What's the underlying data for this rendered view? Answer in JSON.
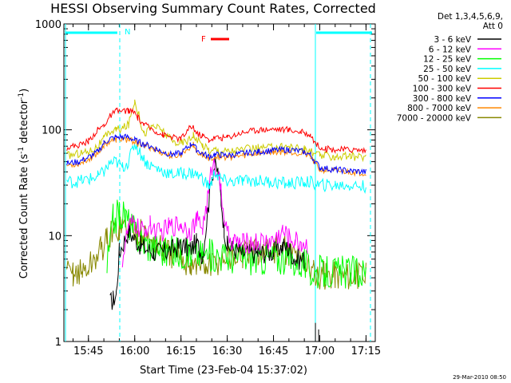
{
  "chart_data": {
    "type": "line",
    "title": "HESSI Observing Summary Count Rates, Corrected",
    "xlabel": "Start Time (23-Feb-04 15:37:02)",
    "ylabel_parts": {
      "a": "Corrected Count Rate (s",
      "sup1": "-1",
      "b": " detector",
      "sup2": "-1",
      "c": ")"
    },
    "y_scale": "log",
    "ylim": [
      1,
      1000
    ],
    "y_ticks": [
      {
        "value": 1,
        "label": "1"
      },
      {
        "value": 10,
        "label": "10"
      },
      {
        "value": 100,
        "label": "100"
      },
      {
        "value": 1000,
        "label": "1000"
      }
    ],
    "xlim_minutes": [
      15.37,
      17.2
    ],
    "x_range_minutes": [
      937.03,
      1038
    ],
    "x_ticks": [
      {
        "minute": 945,
        "label": "15:45"
      },
      {
        "minute": 960,
        "label": "16:00"
      },
      {
        "minute": 975,
        "label": "16:15"
      },
      {
        "minute": 990,
        "label": "16:30"
      },
      {
        "minute": 1005,
        "label": "16:45"
      },
      {
        "minute": 1020,
        "label": "17:00"
      },
      {
        "minute": 1035,
        "label": "17:15"
      }
    ],
    "legend_header": [
      "Det 1,3,4,5,6,9,",
      "Att 0"
    ],
    "legend_placement": "right",
    "series": [
      {
        "name": "3 - 6 keV",
        "color": "#000000",
        "points": [
          [
            943,
            0
          ],
          [
            951,
            0
          ],
          [
            952,
            2.3
          ],
          [
            953,
            2.5
          ],
          [
            954,
            2.8
          ],
          [
            955,
            7
          ],
          [
            958,
            11
          ],
          [
            962,
            8
          ],
          [
            966,
            7
          ],
          [
            970,
            7
          ],
          [
            975,
            8
          ],
          [
            978,
            7.5
          ],
          [
            980,
            8.5
          ],
          [
            982,
            6.5
          ],
          [
            984,
            20
          ],
          [
            985,
            38
          ],
          [
            986,
            46
          ],
          [
            987,
            40
          ],
          [
            988,
            22
          ],
          [
            989,
            12
          ],
          [
            990,
            8
          ],
          [
            995,
            6.8
          ],
          [
            1000,
            6.8
          ],
          [
            1005,
            7
          ],
          [
            1008,
            8
          ],
          [
            1010,
            7.5
          ],
          [
            1012,
            6
          ],
          [
            1015,
            6
          ],
          [
            1017,
            0
          ],
          [
            1018.6,
            1.0
          ],
          [
            1020,
            0
          ]
        ]
      },
      {
        "name": "6 - 12 keV",
        "color": "#ff00ff",
        "points": [
          [
            956,
            6
          ],
          [
            958,
            12
          ],
          [
            960,
            13
          ],
          [
            962,
            11
          ],
          [
            965,
            12.5
          ],
          [
            968,
            10.5
          ],
          [
            971,
            12
          ],
          [
            975,
            13
          ],
          [
            978,
            11
          ],
          [
            980,
            14
          ],
          [
            982,
            12
          ],
          [
            984,
            25
          ],
          [
            985,
            45
          ],
          [
            986,
            48
          ],
          [
            987,
            40
          ],
          [
            988,
            25
          ],
          [
            989,
            15
          ],
          [
            990,
            10
          ],
          [
            992,
            8.8
          ],
          [
            995,
            8.5
          ],
          [
            1000,
            8.7
          ],
          [
            1005,
            9
          ],
          [
            1008,
            11
          ],
          [
            1010,
            9.5
          ],
          [
            1012,
            9
          ],
          [
            1014,
            8.5
          ],
          [
            1016,
            8
          ],
          [
            1017,
            0
          ]
        ]
      },
      {
        "name": "12 - 25 keV",
        "color": "#00ff00",
        "points": [
          [
            951,
            5
          ],
          [
            953,
            14
          ],
          [
            955,
            16
          ],
          [
            957,
            15
          ],
          [
            959,
            12
          ],
          [
            962,
            9
          ],
          [
            965,
            8
          ],
          [
            968,
            7.5
          ],
          [
            970,
            7
          ],
          [
            975,
            7
          ],
          [
            978,
            6.8
          ],
          [
            980,
            7
          ],
          [
            982,
            6.5
          ],
          [
            985,
            6.5
          ],
          [
            988,
            6.5
          ],
          [
            990,
            6.3
          ],
          [
            995,
            6.2
          ],
          [
            1000,
            6
          ],
          [
            1005,
            6.2
          ],
          [
            1010,
            6
          ],
          [
            1015,
            5.5
          ],
          [
            1017,
            4.5
          ],
          [
            1020,
            4.5
          ],
          [
            1025,
            4.5
          ],
          [
            1030,
            4.5
          ],
          [
            1035,
            4.5
          ]
        ]
      },
      {
        "name": "25 - 50 keV",
        "color": "#00ffff",
        "points": [
          [
            938,
            33
          ],
          [
            940,
            32
          ],
          [
            945,
            34
          ],
          [
            948,
            36
          ],
          [
            950,
            40
          ],
          [
            952,
            48
          ],
          [
            954,
            50
          ],
          [
            956,
            44
          ],
          [
            958,
            50
          ],
          [
            960,
            75
          ],
          [
            962,
            58
          ],
          [
            964,
            48
          ],
          [
            968,
            42
          ],
          [
            972,
            38
          ],
          [
            976,
            39
          ],
          [
            979,
            39
          ],
          [
            982,
            35
          ],
          [
            984,
            29
          ],
          [
            985,
            32
          ],
          [
            986,
            40
          ],
          [
            987,
            36
          ],
          [
            988,
            34
          ],
          [
            990,
            32
          ],
          [
            995,
            33
          ],
          [
            1000,
            33
          ],
          [
            1005,
            32
          ],
          [
            1010,
            31
          ],
          [
            1015,
            32
          ],
          [
            1017,
            32
          ],
          [
            1020,
            30
          ],
          [
            1025,
            30
          ],
          [
            1030,
            30
          ],
          [
            1035,
            29
          ]
        ]
      },
      {
        "name": "50 - 100 keV",
        "color": "#cccc00",
        "points": [
          [
            938,
            57
          ],
          [
            942,
            60
          ],
          [
            945,
            62
          ],
          [
            948,
            70
          ],
          [
            950,
            82
          ],
          [
            952,
            95
          ],
          [
            954,
            100
          ],
          [
            956,
            103
          ],
          [
            958,
            112
          ],
          [
            960,
            190
          ],
          [
            961,
            150
          ],
          [
            963,
            92
          ],
          [
            966,
            110
          ],
          [
            969,
            98
          ],
          [
            972,
            78
          ],
          [
            975,
            75
          ],
          [
            978,
            82
          ],
          [
            979,
            92
          ],
          [
            980,
            80
          ],
          [
            982,
            72
          ],
          [
            984,
            65
          ],
          [
            985,
            62
          ],
          [
            986,
            66
          ],
          [
            988,
            63
          ],
          [
            990,
            63
          ],
          [
            995,
            65
          ],
          [
            1000,
            67
          ],
          [
            1005,
            68
          ],
          [
            1010,
            70
          ],
          [
            1015,
            65
          ],
          [
            1017,
            62
          ],
          [
            1020,
            57
          ],
          [
            1025,
            56
          ],
          [
            1030,
            56
          ],
          [
            1035,
            55
          ]
        ]
      },
      {
        "name": "100 - 300 keV",
        "color": "#ff0000",
        "points": [
          [
            938,
            68
          ],
          [
            942,
            72
          ],
          [
            945,
            78
          ],
          [
            948,
            100
          ],
          [
            950,
            110
          ],
          [
            952,
            135
          ],
          [
            954,
            150
          ],
          [
            956,
            150
          ],
          [
            958,
            152
          ],
          [
            960,
            145
          ],
          [
            961,
            130
          ],
          [
            963,
            112
          ],
          [
            966,
            100
          ],
          [
            969,
            90
          ],
          [
            972,
            85
          ],
          [
            975,
            82
          ],
          [
            978,
            105
          ],
          [
            979,
            108
          ],
          [
            980,
            92
          ],
          [
            982,
            88
          ],
          [
            984,
            80
          ],
          [
            986,
            84
          ],
          [
            988,
            84
          ],
          [
            990,
            85
          ],
          [
            995,
            95
          ],
          [
            1000,
            100
          ],
          [
            1005,
            102
          ],
          [
            1010,
            100
          ],
          [
            1014,
            95
          ],
          [
            1017,
            90
          ],
          [
            1019,
            72
          ],
          [
            1022,
            66
          ],
          [
            1025,
            65
          ],
          [
            1030,
            65
          ],
          [
            1035,
            64
          ]
        ]
      },
      {
        "name": "300 - 800 keV",
        "color": "#0000ff",
        "points": [
          [
            938,
            48
          ],
          [
            942,
            50
          ],
          [
            945,
            55
          ],
          [
            948,
            62
          ],
          [
            950,
            75
          ],
          [
            952,
            82
          ],
          [
            954,
            85
          ],
          [
            956,
            86
          ],
          [
            958,
            85
          ],
          [
            960,
            80
          ],
          [
            962,
            75
          ],
          [
            965,
            70
          ],
          [
            968,
            64
          ],
          [
            972,
            58
          ],
          [
            975,
            60
          ],
          [
            978,
            72
          ],
          [
            979,
            75
          ],
          [
            980,
            65
          ],
          [
            982,
            60
          ],
          [
            984,
            56
          ],
          [
            986,
            58
          ],
          [
            988,
            58
          ],
          [
            990,
            57
          ],
          [
            995,
            60
          ],
          [
            1000,
            62
          ],
          [
            1005,
            64
          ],
          [
            1010,
            65
          ],
          [
            1015,
            62
          ],
          [
            1017,
            58
          ],
          [
            1020,
            44
          ],
          [
            1025,
            42
          ],
          [
            1030,
            41
          ],
          [
            1035,
            40
          ]
        ]
      },
      {
        "name": "800 - 7000 keV",
        "color": "#ff8800",
        "points": [
          [
            938,
            46
          ],
          [
            942,
            48
          ],
          [
            945,
            53
          ],
          [
            948,
            60
          ],
          [
            950,
            72
          ],
          [
            952,
            78
          ],
          [
            954,
            80
          ],
          [
            956,
            82
          ],
          [
            958,
            80
          ],
          [
            960,
            77
          ],
          [
            962,
            72
          ],
          [
            965,
            68
          ],
          [
            968,
            62
          ],
          [
            972,
            56
          ],
          [
            975,
            58
          ],
          [
            978,
            70
          ],
          [
            979,
            72
          ],
          [
            980,
            62
          ],
          [
            982,
            57
          ],
          [
            984,
            54
          ],
          [
            986,
            56
          ],
          [
            988,
            55
          ],
          [
            990,
            55
          ],
          [
            995,
            57
          ],
          [
            1000,
            60
          ],
          [
            1005,
            62
          ],
          [
            1010,
            62
          ],
          [
            1015,
            60
          ],
          [
            1017,
            55
          ],
          [
            1020,
            42
          ],
          [
            1025,
            41
          ],
          [
            1030,
            40
          ],
          [
            1035,
            39
          ]
        ]
      },
      {
        "name": "7000 - 20000 keV",
        "color": "#888800",
        "points": [
          [
            938,
            4.3
          ],
          [
            940,
            4.5
          ],
          [
            943,
            4.5
          ],
          [
            945,
            5
          ],
          [
            947,
            6
          ],
          [
            949,
            7.5
          ],
          [
            951,
            9
          ],
          [
            953,
            11
          ],
          [
            955,
            12
          ],
          [
            957,
            12.5
          ],
          [
            959,
            12
          ],
          [
            961,
            11
          ],
          [
            963,
            10
          ],
          [
            966,
            8.5
          ],
          [
            969,
            7.5
          ],
          [
            972,
            6.5
          ],
          [
            975,
            6
          ],
          [
            978,
            5.5
          ],
          [
            980,
            5.2
          ],
          [
            983,
            5
          ],
          [
            986,
            5.5
          ],
          [
            990,
            6.3
          ],
          [
            995,
            6.5
          ],
          [
            1000,
            7
          ],
          [
            1005,
            7.2
          ],
          [
            1008,
            7.5
          ],
          [
            1010,
            7
          ],
          [
            1013,
            6.5
          ],
          [
            1016,
            5.5
          ],
          [
            1018,
            4.3
          ],
          [
            1022,
            4.2
          ],
          [
            1025,
            4.3
          ],
          [
            1030,
            4.2
          ],
          [
            1035,
            4.2
          ]
        ]
      }
    ],
    "annotations": [
      {
        "label": "N",
        "color": "#00ffff",
        "kind": "night"
      },
      {
        "label": "F",
        "color": "#ff0000",
        "kind": "flare"
      }
    ],
    "timestamp": "29-Mar-2010 08:50"
  }
}
